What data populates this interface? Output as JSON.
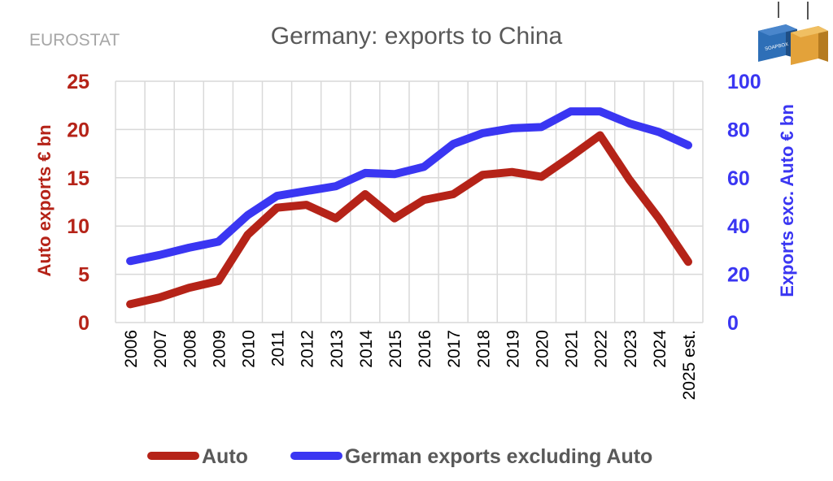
{
  "source_label": "EUROSTAT",
  "logo": {
    "name": "shipping-containers-logo",
    "text": "SOAPBOX"
  },
  "colors": {
    "auto": "#b52318",
    "non_auto": "#3a36f2",
    "grid": "#d9d9d9",
    "title": "#595959",
    "source": "#a6a6a6"
  },
  "chart_data": {
    "type": "line",
    "title": "Germany: exports to China",
    "categories": [
      "2006",
      "2007",
      "2008",
      "2009",
      "2010",
      "2011",
      "2012",
      "2013",
      "2014",
      "2015",
      "2016",
      "2017",
      "2018",
      "2019",
      "2020",
      "2021",
      "2022",
      "2023",
      "2024",
      "2025 est."
    ],
    "y_left": {
      "label": "Auto exports € bn",
      "range": [
        0,
        25
      ],
      "ticks": [
        "0",
        "5",
        "10",
        "15",
        "20",
        "25"
      ]
    },
    "y_right": {
      "label": "Exports exc. Auto € bn",
      "range": [
        0,
        100
      ],
      "ticks": [
        "0",
        "20",
        "40",
        "60",
        "80",
        "100"
      ]
    },
    "grid": true,
    "legend_position": "bottom",
    "series": [
      {
        "name": "Auto",
        "axis": "left",
        "values": [
          1.9,
          2.6,
          3.6,
          4.3,
          9.1,
          11.9,
          12.2,
          10.8,
          13.3,
          10.8,
          12.7,
          13.3,
          15.3,
          15.6,
          15.1,
          17.2,
          19.4,
          14.8,
          10.8,
          6.3
        ]
      },
      {
        "name": "German exports excluding Auto",
        "axis": "right",
        "values": [
          25.5,
          28,
          31,
          33.5,
          44.5,
          52.5,
          54.5,
          56.5,
          62,
          61.5,
          64.5,
          74,
          78.5,
          80.5,
          81,
          87.5,
          87.5,
          82.5,
          79,
          73.5
        ]
      }
    ]
  }
}
